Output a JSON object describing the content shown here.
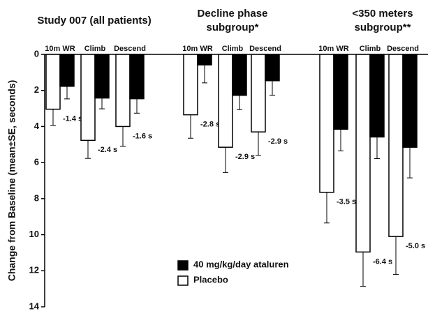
{
  "chart_data": {
    "type": "bar",
    "y_label": "Change from Baseline (mean±SE, seconds)",
    "ylim": [
      0,
      14
    ],
    "yticks": [
      0,
      2,
      4,
      6,
      8,
      10,
      12,
      14
    ],
    "y_inverted": true,
    "legend": "bottom-center",
    "panels": [
      {
        "title_lines": [
          "Study 007 (all patients)"
        ],
        "categories": [
          "10m WR",
          "Climb",
          "Descend"
        ],
        "series": [
          {
            "name": "Placebo",
            "color": "#ffffff",
            "values": [
              3.04,
              4.77,
              4.0
            ],
            "errors": [
              0.9,
              1.0,
              1.1
            ]
          },
          {
            "name": "40 mg/kg/day ataluren",
            "color": "#000000",
            "values": [
              1.77,
              2.42,
              2.46
            ],
            "errors": [
              0.7,
              0.6,
              0.8
            ]
          }
        ],
        "diff_labels": [
          "-1.4 s",
          "-2.4 s",
          "-1.6 s"
        ]
      },
      {
        "title_lines": [
          "Decline phase",
          "subgroup*"
        ],
        "categories": [
          "10m WR",
          "Climb",
          "Descend"
        ],
        "series": [
          {
            "name": "Placebo",
            "color": "#ffffff",
            "values": [
              3.35,
              5.15,
              4.3
            ],
            "errors": [
              1.3,
              1.4,
              1.3
            ]
          },
          {
            "name": "40 mg/kg/day ataluren",
            "color": "#000000",
            "values": [
              0.58,
              2.27,
              1.46
            ],
            "errors": [
              1.0,
              0.8,
              0.8
            ]
          }
        ],
        "diff_labels": [
          "-2.8 s",
          "-2.9 s",
          "-2.9 s"
        ]
      },
      {
        "title_lines": [
          "<350 meters",
          "subgroup**"
        ],
        "categories": [
          "10m WR",
          "Climb",
          "Descend"
        ],
        "series": [
          {
            "name": "Placebo",
            "color": "#ffffff",
            "values": [
              7.65,
              10.96,
              10.1
            ],
            "errors": [
              1.7,
              1.9,
              2.1
            ]
          },
          {
            "name": "40 mg/kg/day ataluren",
            "color": "#000000",
            "values": [
              4.15,
              4.58,
              5.15
            ],
            "errors": [
              1.2,
              1.2,
              1.7
            ]
          }
        ],
        "diff_labels": [
          "-3.5 s",
          "-6.4 s",
          "-5.0 s"
        ]
      }
    ]
  }
}
